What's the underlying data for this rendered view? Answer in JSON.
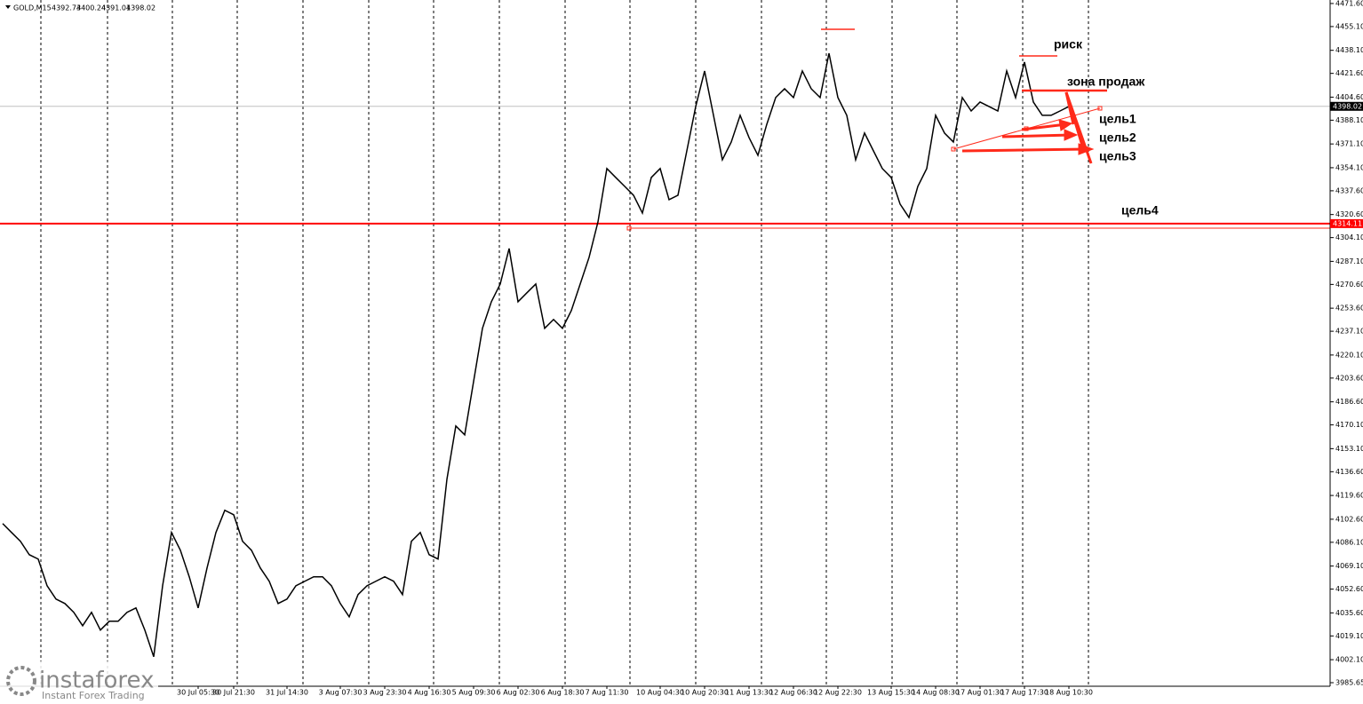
{
  "chart_data": {
    "type": "line",
    "symbol": "GOLD,M15",
    "ohlc": [
      4392.73,
      4400.24,
      4391.01,
      4398.02
    ],
    "current_price": 4398.02,
    "level": 4314.11,
    "annotations": [
      "риск",
      "зона продаж",
      "цель1",
      "цель2",
      "цель3",
      "цель4"
    ],
    "watermark": {
      "brand": "instaforex",
      "tagline": "Instant Forex Trading"
    },
    "color": "#000000",
    "categories": [
      null,
      null,
      null,
      null,
      null,
      null,
      null,
      null,
      null,
      null,
      null,
      null,
      null,
      null,
      null,
      null,
      null,
      null,
      null,
      null,
      null,
      null,
      "30 Jul 05:30",
      null,
      null,
      null,
      "30 Jul 21:30",
      null,
      null,
      null,
      null,
      null,
      "31 Jul 14:30",
      null,
      null,
      null,
      null,
      null,
      "3 Aug 07:30",
      null,
      null,
      null,
      null,
      "3 Aug 23:30",
      null,
      null,
      null,
      null,
      "4 Aug 16:30",
      null,
      null,
      null,
      null,
      "5 Aug 09:30",
      null,
      null,
      null,
      null,
      "6 Aug 02:30",
      null,
      null,
      null,
      null,
      "6 Aug 18:30",
      null,
      null,
      null,
      null,
      "7 Aug 11:30",
      null,
      null,
      null,
      null,
      null,
      "10 Aug 04:30",
      null,
      null,
      null,
      null,
      "10 Aug 20:30",
      null,
      null,
      null,
      null,
      "11 Aug 13:30",
      null,
      null,
      null,
      null,
      "12 Aug 06:30",
      null,
      null,
      null,
      null,
      "12 Aug 22:30",
      null,
      null,
      null,
      null,
      null,
      "13 Aug 15:30",
      null,
      null,
      null,
      null,
      "14 Aug 08:30",
      null,
      null,
      null,
      null,
      "17 Aug 01:30",
      null,
      null,
      null,
      null,
      "17 Aug 17:30",
      null,
      null,
      null,
      null,
      "18 Aug 10:30"
    ],
    "values": [
      4099.5,
      4093.1,
      4086.8,
      4077.2,
      4074.1,
      4055.0,
      4045.5,
      4042.3,
      4036.0,
      4026.4,
      4036.0,
      4023.3,
      4029.6,
      4029.6,
      4036.0,
      4039.1,
      4023.3,
      4004.2,
      4055.0,
      4093.1,
      4080.4,
      4061.4,
      4039.1,
      4067.7,
      4093.1,
      4109.0,
      4105.8,
      4086.8,
      4080.4,
      4067.7,
      4058.2,
      4042.3,
      4045.5,
      4055.0,
      4058.2,
      4061.4,
      4061.4,
      4055.0,
      4042.3,
      4032.8,
      4048.7,
      4055.0,
      4058.2,
      4061.4,
      4058.2,
      4048.7,
      4086.8,
      4093.1,
      4077.2,
      4074.1,
      4131.2,
      4169.3,
      4163.0,
      4201.1,
      4239.2,
      4258.2,
      4270.9,
      4296.3,
      4258.2,
      4264.6,
      4270.9,
      4239.2,
      4245.5,
      4239.2,
      4251.9,
      4270.9,
      4290.0,
      4315.4,
      4353.5,
      4347.1,
      4340.8,
      4334.4,
      4321.7,
      4347.1,
      4353.5,
      4331.2,
      4334.4,
      4366.2,
      4397.9,
      4423.3,
      4391.6,
      4359.8,
      4372.5,
      4391.6,
      4375.7,
      4363.0,
      4385.2,
      4404.3,
      4410.6,
      4404.3,
      4423.3,
      4410.6,
      4404.3,
      4436.0,
      4404.3,
      4391.6,
      4359.8,
      4378.9,
      4366.2,
      4353.5,
      4347.1,
      4328.1,
      4318.5,
      4340.8,
      4353.5,
      4391.6,
      4378.9,
      4372.5,
      4404.3,
      4394.7,
      4401.1,
      4397.9,
      4394.7,
      4423.3,
      4404.3,
      4429.7,
      4401.1,
      4391.6,
      4391.6,
      4394.7,
      4397.9
    ],
    "ylim": [
      3983.1,
      4474.1
    ],
    "yticks": [
      {
        "value": 4471.6,
        "label": "4471.60"
      },
      {
        "value": 4455.1,
        "label": "4455.10"
      },
      {
        "value": 4438.1,
        "label": "4438.10"
      },
      {
        "value": 4421.6,
        "label": "4421.60"
      },
      {
        "value": 4404.6,
        "label": "4404.60"
      },
      {
        "value": 4388.1,
        "label": "4388.10"
      },
      {
        "value": 4371.1,
        "label": "4371.10"
      },
      {
        "value": 4354.1,
        "label": "4354.10"
      },
      {
        "value": 4337.6,
        "label": "4337.60"
      },
      {
        "value": 4320.6,
        "label": "4320.60"
      },
      {
        "value": 4304.1,
        "label": "4304.10"
      },
      {
        "value": 4287.1,
        "label": "4287.10"
      },
      {
        "value": 4270.6,
        "label": "4270.60"
      },
      {
        "value": 4253.6,
        "label": "4253.60"
      },
      {
        "value": 4237.1,
        "label": "4237.10"
      },
      {
        "value": 4220.1,
        "label": "4220.10"
      },
      {
        "value": 4203.6,
        "label": "4203.60"
      },
      {
        "value": 4186.6,
        "label": "4186.60"
      },
      {
        "value": 4170.1,
        "label": "4170.10"
      },
      {
        "value": 4153.1,
        "label": "4153.10"
      },
      {
        "value": 4136.6,
        "label": "4136.60"
      },
      {
        "value": 4119.6,
        "label": "4119.60"
      },
      {
        "value": 4102.6,
        "label": "4102.60"
      },
      {
        "value": 4086.1,
        "label": "4086.10"
      },
      {
        "value": 4069.1,
        "label": "4069.10"
      },
      {
        "value": 4052.6,
        "label": "4052.60"
      },
      {
        "value": 4035.6,
        "label": "4035.60"
      },
      {
        "value": 4019.1,
        "label": "4019.10"
      },
      {
        "value": 4002.1,
        "label": "4002.10"
      },
      3985.65
    ]
  }
}
